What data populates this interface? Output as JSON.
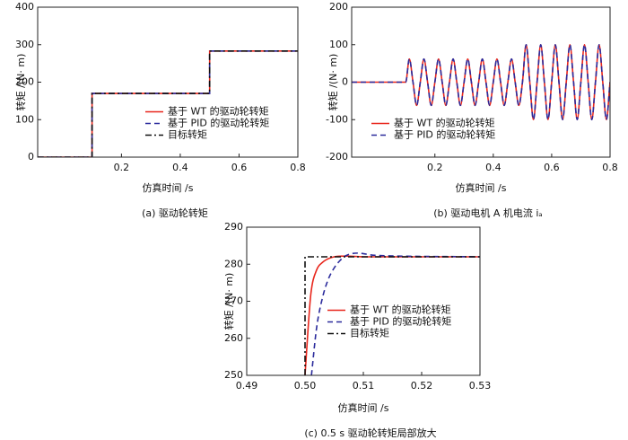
{
  "chart_data": [
    {
      "type": "line",
      "caption": "(a)  驱动轮转矩",
      "xlabel": "仿真时间 /s",
      "ylabel": "转矩 /(N· m)",
      "xlim": [
        -0.085,
        0.8
      ],
      "xticks": [
        0.2,
        0.4,
        0.6,
        0.8
      ],
      "ylim": [
        0,
        400
      ],
      "yticks": [
        0,
        100,
        200,
        300,
        400
      ],
      "grid": false,
      "legend": "lower right",
      "series": [
        {
          "name": "基于 WT 的驱动轮转矩",
          "color": "#e8261c",
          "linestyle": "solid",
          "x": [
            -0.085,
            0.1,
            0.1,
            0.5,
            0.5,
            0.8
          ],
          "values": [
            0,
            0,
            170,
            170,
            283,
            283
          ]
        },
        {
          "name": "基于 PID 的驱动轮转矩",
          "color": "#2b2b9c",
          "linestyle": "dashed",
          "x": [
            -0.085,
            0.1,
            0.1,
            0.5,
            0.5,
            0.8
          ],
          "values": [
            0,
            0,
            170,
            170,
            283,
            283
          ]
        },
        {
          "name": "目标转矩",
          "color": "#111111",
          "linestyle": "dashdot",
          "x": [
            -0.085,
            0.1,
            0.1,
            0.5,
            0.5,
            0.8
          ],
          "values": [
            0,
            0,
            170,
            170,
            283,
            283
          ]
        }
      ]
    },
    {
      "type": "line",
      "caption": "(b)  驱动电机 A 机电流 iₐ",
      "xlabel": "仿真时间 /s",
      "ylabel": "转矩 /(N· m)",
      "xlim": [
        -0.085,
        0.8
      ],
      "xticks": [
        0.2,
        0.4,
        0.6,
        0.8
      ],
      "ylim": [
        -200,
        200
      ],
      "yticks": [
        -200,
        -100,
        0,
        100,
        200
      ],
      "grid": false,
      "legend": "lower left",
      "x": [
        -0.085,
        0.1,
        0.1125,
        0.125,
        0.1375,
        0.15,
        0.1625,
        0.175,
        0.1875,
        0.2,
        0.2125,
        0.225,
        0.2375,
        0.25,
        0.2625,
        0.275,
        0.2875,
        0.3,
        0.3125,
        0.325,
        0.3375,
        0.35,
        0.3625,
        0.375,
        0.3875,
        0.4,
        0.4125,
        0.425,
        0.4375,
        0.45,
        0.4625,
        0.475,
        0.4875,
        0.5,
        0.5125,
        0.525,
        0.5375,
        0.55,
        0.5625,
        0.575,
        0.5875,
        0.6,
        0.6125,
        0.625,
        0.6375,
        0.65,
        0.6625,
        0.675,
        0.6875,
        0.7,
        0.7125,
        0.725,
        0.7375,
        0.75,
        0.7625,
        0.775,
        0.7875,
        0.8
      ],
      "series": [
        {
          "name": "基于 WT 的驱动轮转矩",
          "color": "#e8261c",
          "linestyle": "solid",
          "values": [
            0,
            0,
            62,
            0,
            -62,
            0,
            62,
            0,
            -62,
            0,
            62,
            0,
            -62,
            0,
            62,
            0,
            -62,
            0,
            62,
            0,
            -62,
            0,
            62,
            0,
            -62,
            0,
            62,
            0,
            -62,
            0,
            62,
            0,
            -62,
            0,
            100,
            0,
            -100,
            0,
            100,
            0,
            -100,
            0,
            100,
            0,
            -100,
            0,
            100,
            0,
            -100,
            0,
            100,
            0,
            -100,
            0,
            100,
            0,
            -100,
            0
          ]
        },
        {
          "name": "基于 PID 的驱动轮转矩",
          "color": "#2b2b9c",
          "linestyle": "dashed",
          "values": [
            0,
            0,
            62,
            0,
            -62,
            0,
            62,
            0,
            -62,
            0,
            62,
            0,
            -62,
            0,
            62,
            0,
            -62,
            0,
            62,
            0,
            -62,
            0,
            62,
            0,
            -62,
            0,
            62,
            0,
            -62,
            0,
            62,
            0,
            -62,
            0,
            100,
            0,
            -100,
            0,
            100,
            0,
            -100,
            0,
            100,
            0,
            -100,
            0,
            100,
            0,
            -100,
            0,
            100,
            0,
            -100,
            0,
            100,
            0,
            -100,
            0
          ]
        }
      ]
    },
    {
      "type": "line",
      "caption": "(c)  0.5 s 驱动轮转矩局部放大",
      "xlabel": "仿真时间 /s",
      "ylabel": "转矩 /(N· m)",
      "xlim": [
        0.49,
        0.53
      ],
      "xticks": [
        0.49,
        {
          "value": 0.5,
          "label": "0.50"
        },
        0.51,
        0.52,
        0.53
      ],
      "ylim": [
        250,
        290
      ],
      "yticks": [
        250,
        260,
        270,
        280,
        290
      ],
      "grid": false,
      "legend": "center right",
      "series": [
        {
          "name": "基于 WT 的驱动轮转矩",
          "color": "#e8261c",
          "linestyle": "solid",
          "x": [
            0.5,
            0.5005,
            0.501,
            0.502,
            0.503,
            0.504,
            0.505,
            0.507,
            0.51,
            0.53
          ],
          "values": [
            250,
            262,
            272,
            278.5,
            280.5,
            281.5,
            282,
            282.2,
            282,
            282
          ]
        },
        {
          "name": "基于 PID 的驱动轮转矩",
          "color": "#2b2b9c",
          "linestyle": "dashed",
          "x": [
            0.5011,
            0.502,
            0.503,
            0.504,
            0.505,
            0.506,
            0.507,
            0.509,
            0.512,
            0.53
          ],
          "values": [
            250,
            263,
            271,
            276,
            279,
            281,
            282.3,
            283,
            282.4,
            282
          ]
        },
        {
          "name": "目标转矩",
          "color": "#111111",
          "linestyle": "dashdot",
          "x": [
            0.5,
            0.5,
            0.53
          ],
          "values": [
            250,
            282,
            282
          ]
        }
      ]
    }
  ]
}
